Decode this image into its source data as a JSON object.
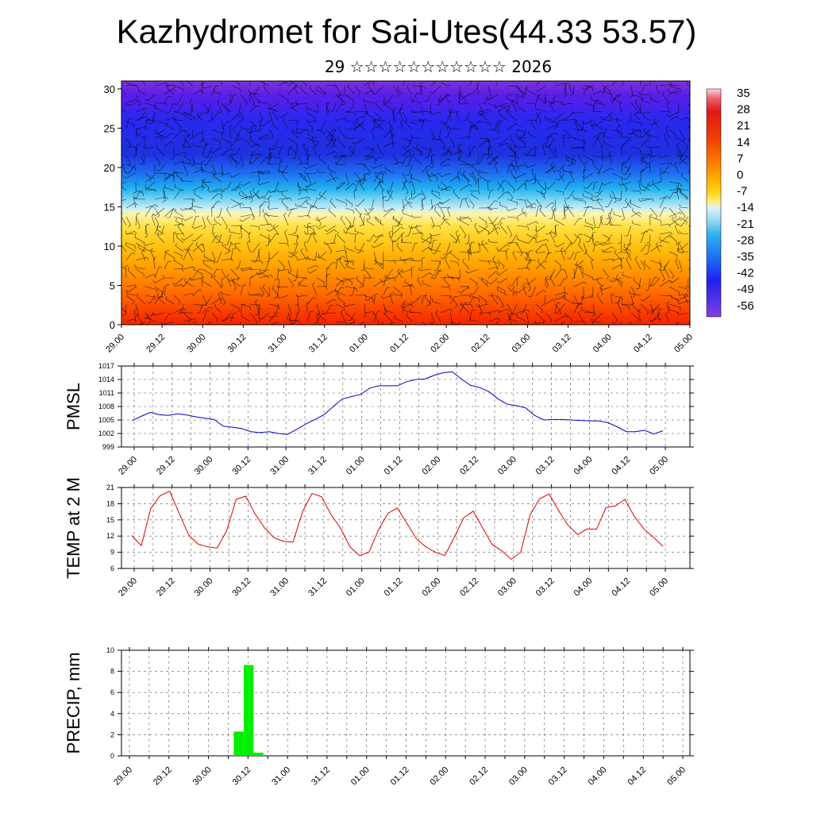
{
  "title": "Kazhydromet for Sai-Utes(44.33 53.57)",
  "subtitle": "29 ☆☆☆☆☆☆☆☆☆☆☆ 2026",
  "time_labels": [
    "29.00",
    "29.12",
    "30.00",
    "30.12",
    "31.00",
    "31.12",
    "01.00",
    "01.12",
    "02.00",
    "02.12",
    "03.00",
    "03.12",
    "04.00",
    "04.12",
    "05.00"
  ],
  "colors": {
    "pmsl_line": "#0000cc",
    "temp_line": "#dd0000",
    "precip_bar": "#00ee00"
  },
  "chart_data": [
    {
      "type": "heatmap",
      "name": "vertical temperature cross-section with wind barbs",
      "title": "",
      "ylim": [
        0,
        31
      ],
      "yticks": [
        0,
        5,
        10,
        15,
        20,
        25,
        30
      ],
      "colorbar_labels": [
        "35",
        "28",
        "21",
        "14",
        "7",
        "0",
        "-7",
        "-14",
        "-21",
        "-28",
        "-35",
        "-42",
        "-49",
        "-56"
      ],
      "colorbar_min": -63,
      "colorbar_max": 40
    },
    {
      "type": "line",
      "name": "PMSL",
      "ylabel": "PMSL",
      "ylim": [
        999,
        1017
      ],
      "yticks": [
        999,
        1002,
        1005,
        1008,
        1011,
        1014,
        1017
      ],
      "values": [
        1004.8,
        1005.8,
        1006.7,
        1006.2,
        1006.0,
        1006.4,
        1006.1,
        1005.7,
        1005.4,
        1005.1,
        1003.6,
        1003.4,
        1003.1,
        1002.4,
        1002.2,
        1002.4,
        1002.0,
        1001.8,
        1002.9,
        1004.1,
        1005.1,
        1006.2,
        1008.0,
        1009.7,
        1010.2,
        1010.7,
        1012.1,
        1012.6,
        1012.6,
        1012.6,
        1013.5,
        1014.0,
        1014.1,
        1014.9,
        1015.5,
        1015.7,
        1014.1,
        1012.7,
        1012.2,
        1011.3,
        1009.7,
        1008.5,
        1008.2,
        1007.7,
        1006.0,
        1005.0,
        1005.1,
        1005.1,
        1005.0,
        1004.9,
        1004.8,
        1004.8,
        1004.4,
        1003.5,
        1002.4,
        1002.4,
        1002.7,
        1001.9,
        1002.6
      ]
    },
    {
      "type": "line",
      "name": "TEMP at 2 M",
      "ylabel": "TEMP at 2 M",
      "ylim": [
        6,
        21
      ],
      "yticks": [
        6,
        9,
        12,
        15,
        18,
        21
      ],
      "values": [
        12.1,
        10.2,
        17.1,
        19.5,
        20.3,
        16.2,
        12.2,
        10.5,
        10.0,
        9.8,
        13.0,
        18.8,
        19.4,
        16.1,
        13.5,
        11.7,
        11.0,
        10.9,
        16.5,
        19.9,
        19.3,
        16.0,
        13.5,
        10.0,
        8.4,
        9.0,
        13.1,
        16.2,
        17.2,
        14.4,
        11.5,
        10.0,
        9.0,
        8.4,
        11.8,
        15.4,
        16.6,
        13.5,
        10.4,
        9.3,
        7.7,
        9.0,
        16.0,
        18.9,
        19.8,
        16.7,
        14.0,
        12.3,
        13.3,
        13.3,
        17.3,
        17.6,
        18.8,
        15.6,
        13.3,
        11.8,
        10.1
      ]
    },
    {
      "type": "bar",
      "name": "PRECIP, mm",
      "ylabel": "PRECIP, mm",
      "ylim": [
        0,
        10
      ],
      "yticks": [
        0,
        2,
        4,
        6,
        8,
        10
      ],
      "bars": [
        {
          "x": 8,
          "value": 2.3
        },
        {
          "x": 9,
          "value": 8.6
        },
        {
          "x": 10,
          "value": 0.3
        }
      ]
    }
  ]
}
